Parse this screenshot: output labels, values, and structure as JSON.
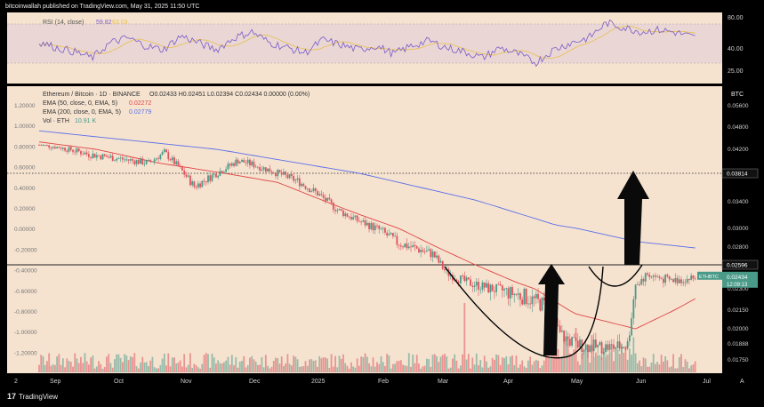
{
  "header": {
    "text": "bitcoinwallah published on TradingView.com, May 31, 2025 11:50 UTC"
  },
  "footer": {
    "logo_mark": "17",
    "logo_text": "TradingView"
  },
  "colors": {
    "background": "#f5e3d0",
    "up": "#4a9a89",
    "down": "#e0525d",
    "ema200": "#5b6ee8",
    "ema50": "#e04545",
    "rsi_band": "#e6d3d6",
    "rsi_line": "#7a5bc8",
    "rsi_ma": "#e8c04a"
  },
  "rsi_panel": {
    "legend": "RSI (14, close)",
    "value": "59.82",
    "ma_value": "63.03",
    "scale": [
      "80.00",
      "40.00",
      "25.00"
    ]
  },
  "legend": {
    "symbol": "Ethereum / Bitcoin · 1D · BINANCE",
    "ohlc": "O0.02433  H0.02451  L0.02394  C0.02434  0.00000 (0.00%)",
    "ema50": "EMA (50, close, 0, EMA, 5)",
    "ema50_value": "0.02272",
    "ema200": "EMA (200, close, 0, EMA, 5)",
    "ema200_value": "0.02779",
    "vol": "Vol · ETH",
    "vol_value": "10.91 K"
  },
  "chart_data": {
    "type": "candlestick",
    "currency": "BTC",
    "left_axis_labels": [
      "1.20000",
      "1.00000",
      "0.80000",
      "0.60000",
      "0.40000",
      "0.20000",
      "0.00000",
      "-0.20000",
      "-0.40000",
      "-0.60000",
      "-0.80000",
      "-1.00000",
      "-1.20000"
    ],
    "right_axis_labels": [
      "0.05600",
      "0.04800",
      "0.04200",
      "0.03800",
      "0.03400",
      "0.03000",
      "0.02800",
      "0.02596",
      "0.02300",
      "0.02150",
      "0.02000",
      "0.01888",
      "0.01750"
    ],
    "price_lines": [
      {
        "label": "0.03814",
        "value": 0.03814,
        "style": "dotted"
      },
      {
        "label": "0.02596",
        "value": 0.02596,
        "style": "solid"
      }
    ],
    "last_price": {
      "label": "ETHBTC",
      "value": "0.02434",
      "countdown": "12:09:13"
    },
    "x_labels": [
      "2",
      "Sep",
      "Oct",
      "Nov",
      "Dec",
      "2025",
      "Feb",
      "Mar",
      "Apr",
      "May",
      "Jun",
      "Jul",
      "A"
    ],
    "price_path_anchors": [
      [
        0,
        0.0432
      ],
      [
        10,
        0.0425
      ],
      [
        25,
        0.0412
      ],
      [
        40,
        0.0405
      ],
      [
        55,
        0.0398
      ],
      [
        63,
        0.0415
      ],
      [
        70,
        0.0392
      ],
      [
        78,
        0.0362
      ],
      [
        85,
        0.0374
      ],
      [
        95,
        0.0392
      ],
      [
        100,
        0.0402
      ],
      [
        108,
        0.0395
      ],
      [
        118,
        0.0384
      ],
      [
        130,
        0.037
      ],
      [
        140,
        0.0352
      ],
      [
        150,
        0.0328
      ],
      [
        160,
        0.0312
      ],
      [
        170,
        0.03
      ],
      [
        180,
        0.0285
      ],
      [
        190,
        0.0278
      ],
      [
        198,
        0.0272
      ],
      [
        205,
        0.025
      ],
      [
        215,
        0.0238
      ],
      [
        225,
        0.0232
      ],
      [
        235,
        0.0228
      ],
      [
        245,
        0.0224
      ],
      [
        255,
        0.0218
      ],
      [
        262,
        0.0196
      ],
      [
        270,
        0.0188
      ],
      [
        280,
        0.0186
      ],
      [
        290,
        0.0186
      ],
      [
        296,
        0.0188
      ],
      [
        300,
        0.0235
      ],
      [
        306,
        0.0248
      ],
      [
        312,
        0.0243
      ],
      [
        318,
        0.024
      ],
      [
        324,
        0.0242
      ],
      [
        330,
        0.0243
      ]
    ],
    "ema50_approx": [
      [
        0,
        0.044
      ],
      [
        60,
        0.0398
      ],
      [
        120,
        0.0368
      ],
      [
        160,
        0.0322
      ],
      [
        200,
        0.028
      ],
      [
        240,
        0.0238
      ],
      [
        270,
        0.0212
      ],
      [
        300,
        0.02
      ],
      [
        330,
        0.0223
      ]
    ],
    "ema200_approx": [
      [
        0,
        0.047
      ],
      [
        80,
        0.0425
      ],
      [
        160,
        0.0382
      ],
      [
        220,
        0.0342
      ],
      [
        260,
        0.0305
      ],
      [
        300,
        0.0286
      ],
      [
        330,
        0.0279
      ]
    ],
    "rsi_values": [
      56,
      50,
      46,
      40,
      55,
      60,
      52,
      48,
      62,
      55,
      48,
      60,
      66,
      55,
      50,
      45,
      58,
      53,
      48,
      52,
      44,
      52,
      57,
      50,
      46,
      40,
      50,
      44,
      35,
      48,
      55,
      60,
      75,
      70,
      66,
      68,
      65,
      60
    ]
  }
}
